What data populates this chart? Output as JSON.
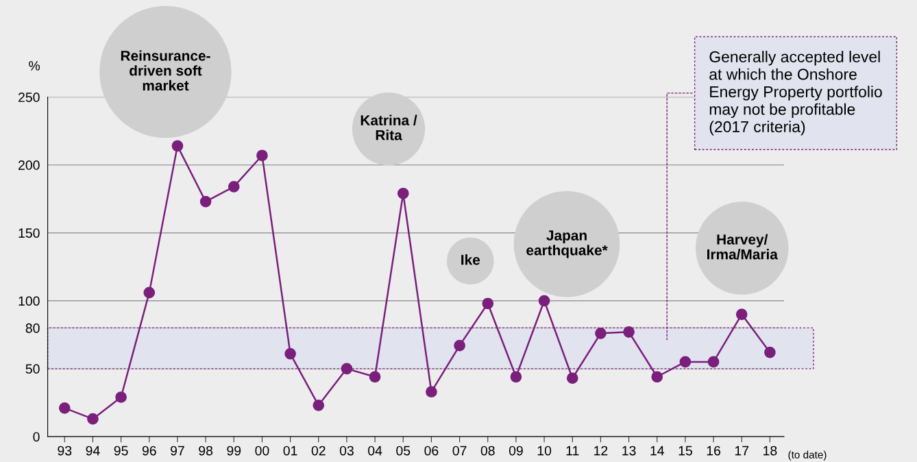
{
  "chart_data": {
    "type": "line",
    "ylabel": "%",
    "categories": [
      "93",
      "94",
      "95",
      "96",
      "97",
      "98",
      "99",
      "00",
      "01",
      "02",
      "03",
      "04",
      "05",
      "06",
      "07",
      "08",
      "09",
      "10",
      "11",
      "12",
      "13",
      "14",
      "15",
      "16",
      "17",
      "18"
    ],
    "series": [
      {
        "color": "#7a1f7c",
        "values": [
          21,
          13,
          29,
          106,
          214,
          173,
          184,
          207,
          61,
          23,
          50,
          44,
          179,
          33,
          67,
          98,
          44,
          100,
          43,
          76,
          77,
          44,
          55,
          55,
          90,
          62
        ]
      }
    ],
    "marker": "circle",
    "line_style": "solid",
    "ylim": [
      0,
      250
    ],
    "yticks": [
      0,
      50,
      80,
      100,
      150,
      200,
      250
    ],
    "grid": "y",
    "legend": false,
    "bands": [
      {
        "axis": "y",
        "from": 50,
        "to": 80,
        "color": "#e1e3ee",
        "label": "Generally accepted level\nat which the Onshore\nEnergy Property portfolio\nmay not be profitable\n(2017 criteria)"
      }
    ],
    "annotations": [
      "Reinsurance-\ndriven soft\nmarket",
      "Katrina /\nRita",
      "Ike",
      "Japan\nearthquake*",
      "Harvey/\nIrma/Maria",
      "(to date)"
    ]
  }
}
